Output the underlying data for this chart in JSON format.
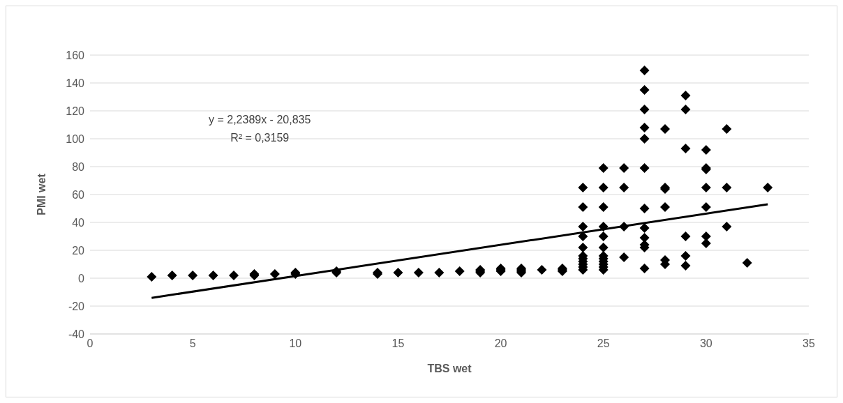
{
  "chart_data": {
    "type": "scatter",
    "xlabel": "TBS wet",
    "ylabel": "PMI wet",
    "annotations": [
      "y = 2,2389x - 20,835",
      "R² = 0,3159"
    ],
    "xlim": [
      0,
      35
    ],
    "xticks": [
      0,
      5,
      10,
      15,
      20,
      25,
      30,
      35
    ],
    "ylim": [
      -40,
      160
    ],
    "yticks": [
      -40,
      -20,
      0,
      20,
      40,
      60,
      80,
      100,
      120,
      140,
      160
    ],
    "grid": "y",
    "legend": false,
    "marker": "diamond",
    "series": [
      {
        "color": "#000000",
        "x": [
          3,
          4,
          5,
          6,
          7,
          8,
          8,
          9,
          10,
          10,
          12,
          12,
          14,
          14,
          15,
          16,
          17,
          18,
          19,
          19,
          19,
          20,
          20,
          20,
          21,
          21,
          21,
          21,
          22,
          23,
          23,
          23,
          24,
          24,
          24,
          24,
          24,
          24,
          24,
          24,
          24,
          24,
          24,
          25,
          25,
          25,
          25,
          25,
          25,
          25,
          25,
          25,
          25,
          25,
          25,
          26,
          26,
          26,
          26,
          27,
          27,
          27,
          27,
          27,
          27,
          27,
          27,
          27,
          27,
          27,
          27,
          28,
          28,
          28,
          28,
          28,
          28,
          29,
          29,
          29,
          29,
          29,
          29,
          30,
          30,
          30,
          30,
          30,
          30,
          30,
          31,
          31,
          31,
          32,
          33
        ],
        "values": [
          1,
          2,
          2,
          2,
          2,
          2,
          3,
          3,
          3,
          4,
          4,
          5,
          3,
          4,
          4,
          4,
          4,
          5,
          4,
          5,
          6,
          5,
          6,
          7,
          4,
          5,
          6,
          7,
          6,
          5,
          6,
          7,
          6,
          8,
          10,
          12,
          14,
          16,
          22,
          30,
          37,
          51,
          65,
          6,
          8,
          10,
          12,
          14,
          16,
          22,
          30,
          37,
          51,
          65,
          79,
          15,
          37,
          65,
          79,
          7,
          22,
          24,
          29,
          36,
          50,
          79,
          100,
          108,
          121,
          135,
          149,
          10,
          13,
          51,
          64,
          65,
          107,
          9,
          16,
          30,
          93,
          121,
          131,
          25,
          30,
          51,
          65,
          78,
          79,
          92,
          37,
          65,
          107,
          11,
          65
        ]
      },
      {
        "type": "line",
        "color": "#000000",
        "marker": "none",
        "line_style": "solid",
        "x": [
          3,
          33
        ],
        "values": [
          -14.1,
          53.0
        ]
      }
    ]
  }
}
